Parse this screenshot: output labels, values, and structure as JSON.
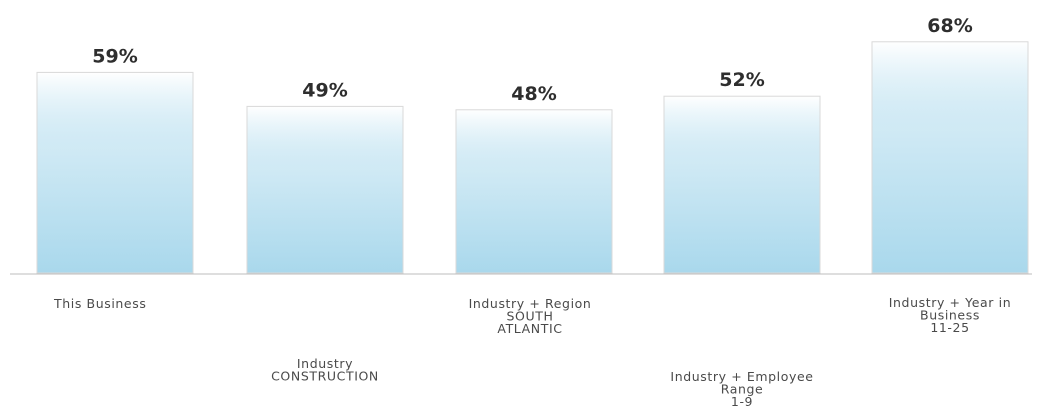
{
  "chart_data": {
    "type": "bar",
    "categories": [
      [
        "This Business"
      ],
      [
        "Industry",
        "CONSTRUCTION"
      ],
      [
        "Industry + Region",
        "SOUTH",
        "ATLANTIC"
      ],
      [
        "Industry + Employee",
        "Range",
        "1-9"
      ],
      [
        "Industry + Year in",
        "Business",
        "11-25"
      ]
    ],
    "values": [
      59,
      49,
      48,
      52,
      68
    ],
    "value_labels": [
      "59%",
      "49%",
      "48%",
      "52%",
      "68%"
    ],
    "unit": "%",
    "ylim": [
      0,
      100
    ],
    "grid": false,
    "colors": {
      "bar_top": "#ffffff",
      "bar_bottom": "#a9d8ec",
      "bar_outline": "#d9d9d9",
      "baseline": "#bdbdbd",
      "value_text": "#2e2e2e",
      "label_text": "#4a4a4a"
    }
  }
}
